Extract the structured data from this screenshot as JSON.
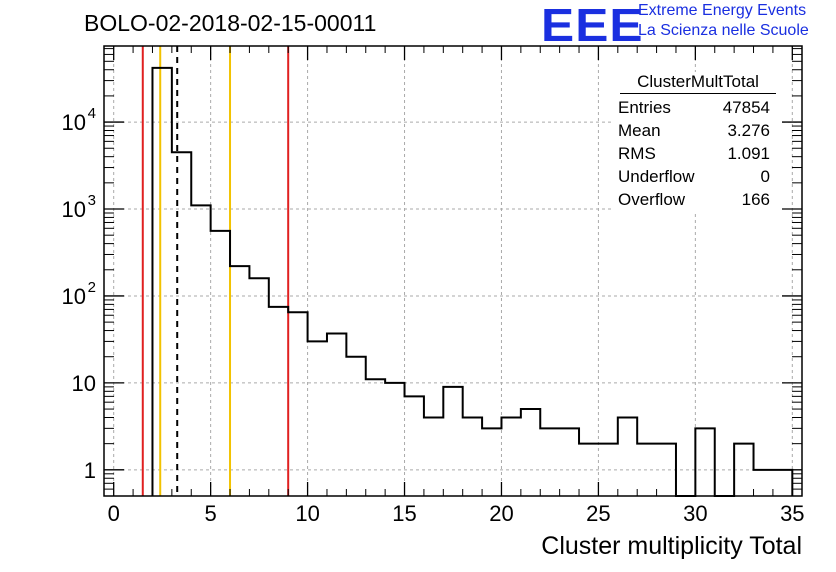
{
  "header": {
    "title": "BOLO-02-2018-02-15-00011",
    "logo_text": "EEE",
    "logo_line1": "Extreme Energy Events",
    "logo_line2": "La Scienza nelle Scuole",
    "logo_color": "#1a2fe0"
  },
  "stats_box": {
    "title": "ClusterMultTotal",
    "rows": [
      {
        "label": "Entries",
        "value": "47854"
      },
      {
        "label": "Mean",
        "value": "3.276"
      },
      {
        "label": "RMS",
        "value": "1.091"
      },
      {
        "label": "Underflow",
        "value": "0"
      },
      {
        "label": "Overflow",
        "value": "166"
      }
    ]
  },
  "chart_data": {
    "type": "histogram",
    "xlabel": "Cluster multiplicity Total",
    "ylabel": "",
    "xlim": [
      -0.5,
      35.5
    ],
    "ylim": [
      0.5,
      75000
    ],
    "y_scale": "log",
    "grid": true,
    "x_ticks": [
      0,
      5,
      10,
      15,
      20,
      25,
      30,
      35
    ],
    "y_ticks": [
      {
        "value": 1,
        "label": "1"
      },
      {
        "value": 10,
        "label": "10"
      },
      {
        "value": 100,
        "label": "10",
        "exp": "2"
      },
      {
        "value": 1000,
        "label": "10",
        "exp": "3"
      },
      {
        "value": 10000,
        "label": "10",
        "exp": "4"
      }
    ],
    "bin_width": 1,
    "bins": [
      {
        "x": 2.5,
        "count": 42000
      },
      {
        "x": 3.5,
        "count": 4500
      },
      {
        "x": 4.5,
        "count": 1100
      },
      {
        "x": 5.5,
        "count": 560
      },
      {
        "x": 6.5,
        "count": 220
      },
      {
        "x": 7.5,
        "count": 160
      },
      {
        "x": 8.5,
        "count": 75
      },
      {
        "x": 9.5,
        "count": 65
      },
      {
        "x": 10.5,
        "count": 30
      },
      {
        "x": 11.5,
        "count": 37
      },
      {
        "x": 12.5,
        "count": 20
      },
      {
        "x": 13.5,
        "count": 11
      },
      {
        "x": 14.5,
        "count": 10
      },
      {
        "x": 15.5,
        "count": 7
      },
      {
        "x": 16.5,
        "count": 4
      },
      {
        "x": 17.5,
        "count": 9
      },
      {
        "x": 18.5,
        "count": 4
      },
      {
        "x": 19.5,
        "count": 3
      },
      {
        "x": 20.5,
        "count": 4
      },
      {
        "x": 21.5,
        "count": 5
      },
      {
        "x": 22.5,
        "count": 3
      },
      {
        "x": 23.5,
        "count": 3
      },
      {
        "x": 24.5,
        "count": 2
      },
      {
        "x": 25.5,
        "count": 2
      },
      {
        "x": 26.5,
        "count": 4
      },
      {
        "x": 27.5,
        "count": 2
      },
      {
        "x": 28.5,
        "count": 2
      },
      {
        "x": 29.5,
        "count": 0
      },
      {
        "x": 30.5,
        "count": 3
      },
      {
        "x": 31.5,
        "count": 0
      },
      {
        "x": 32.5,
        "count": 2
      },
      {
        "x": 33.5,
        "count": 1
      },
      {
        "x": 34.5,
        "count": 1
      }
    ],
    "vertical_lines": [
      {
        "x": 1.5,
        "color": "#e02020",
        "style": "solid"
      },
      {
        "x": 2.4,
        "color": "#f2c200",
        "style": "solid"
      },
      {
        "x": 3.276,
        "color": "#000000",
        "style": "dashed"
      },
      {
        "x": 6.0,
        "color": "#f2c200",
        "style": "solid"
      },
      {
        "x": 9.0,
        "color": "#e02020",
        "style": "solid"
      }
    ]
  }
}
